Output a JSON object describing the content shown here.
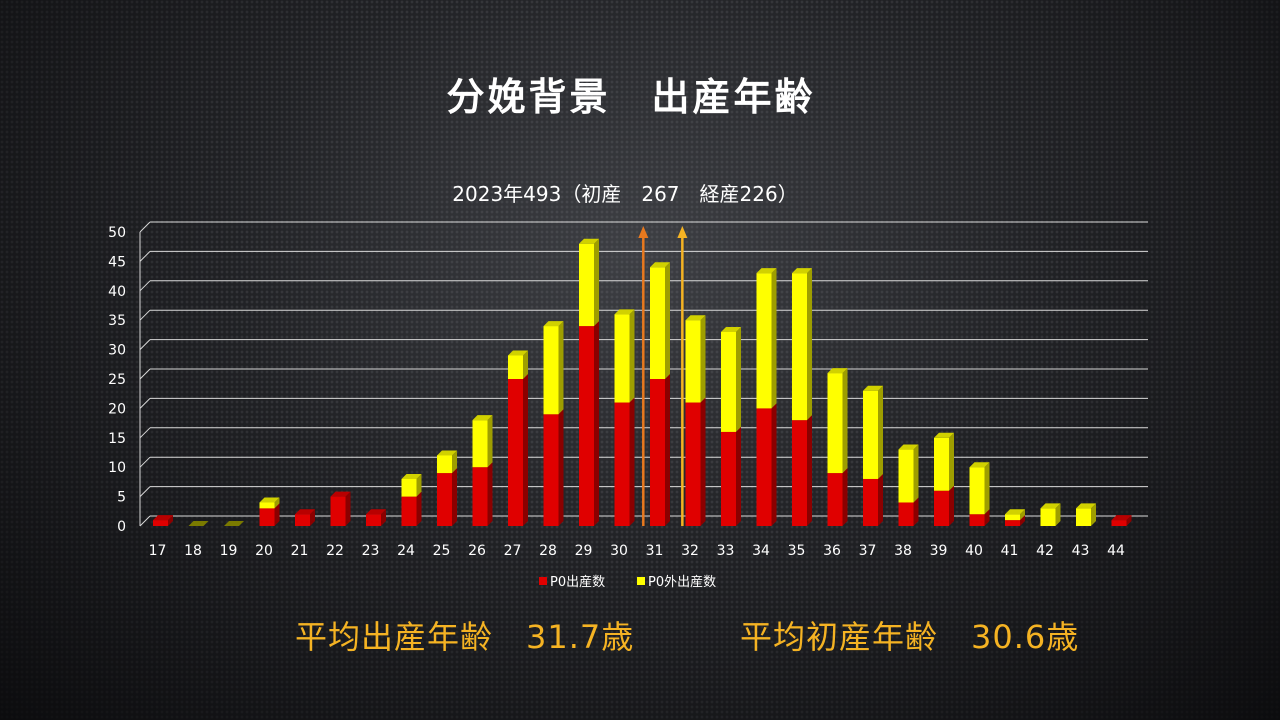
{
  "slide": {
    "title": "分娩背景　出産年齢",
    "avg_age_label": "平均出産年齢　31.7歳",
    "avg_first_age_label": "平均初産年齢　30.6歳"
  },
  "colors": {
    "red_series": "#e00000",
    "yellow_series": "#ffff00",
    "arrow_avg_all": "#f5b323",
    "arrow_avg_first": "#e8791e",
    "avg_text": "#f5b323"
  },
  "chart_data": {
    "type": "bar",
    "stacked": true,
    "title": "2023年493（初産　267　経産226）",
    "xlabel": "",
    "ylabel": "",
    "ylim": [
      0,
      50
    ],
    "yticks": [
      0,
      5,
      10,
      15,
      20,
      25,
      30,
      35,
      40,
      45,
      50
    ],
    "grid": true,
    "legend_position": "bottom",
    "categories": [
      "17",
      "18",
      "19",
      "20",
      "21",
      "22",
      "23",
      "24",
      "25",
      "26",
      "27",
      "28",
      "29",
      "30",
      "31",
      "32",
      "33",
      "34",
      "35",
      "36",
      "37",
      "38",
      "39",
      "40",
      "41",
      "42",
      "43",
      "44"
    ],
    "series": [
      {
        "name": "P0出産数",
        "color": "#e00000",
        "values": [
          1,
          0,
          0,
          3,
          2,
          5,
          2,
          5,
          9,
          10,
          25,
          19,
          34,
          21,
          25,
          21,
          16,
          20,
          18,
          9,
          8,
          4,
          6,
          2,
          1,
          0,
          0,
          1
        ]
      },
      {
        "name": "P0外出産数",
        "color": "#ffff00",
        "values": [
          0,
          0,
          0,
          1,
          0,
          0,
          0,
          3,
          3,
          8,
          4,
          15,
          14,
          15,
          19,
          14,
          17,
          23,
          25,
          17,
          15,
          9,
          9,
          8,
          1,
          3,
          3,
          0
        ]
      }
    ],
    "markers": [
      {
        "x": 30.6,
        "color": "#e8791e"
      },
      {
        "x": 31.7,
        "color": "#f5b323"
      }
    ]
  }
}
